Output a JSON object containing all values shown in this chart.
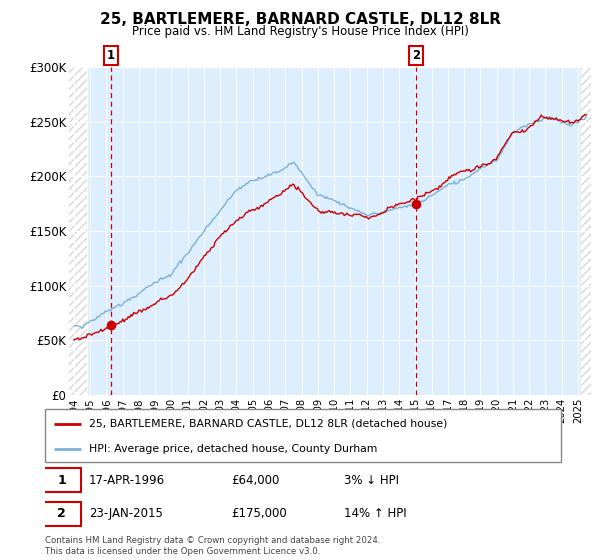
{
  "title": "25, BARTLEMERE, BARNARD CASTLE, DL12 8LR",
  "subtitle": "Price paid vs. HM Land Registry's House Price Index (HPI)",
  "sale1_date": 1996.29,
  "sale1_price": 64000,
  "sale2_date": 2015.06,
  "sale2_price": 175000,
  "ylim": [
    0,
    300000
  ],
  "xlim_start": 1993.7,
  "xlim_end": 2025.8,
  "hpi_color": "#7ab3d9",
  "price_color": "#cc0000",
  "bg_color": "#ddeeff",
  "legend1_label": "25, BARTLEMERE, BARNARD CASTLE, DL12 8LR (detached house)",
  "legend2_label": "HPI: Average price, detached house, County Durham",
  "note1": "17-APR-1996",
  "note1_price": "£64,000",
  "note1_hpi": "3% ↓ HPI",
  "note2": "23-JAN-2015",
  "note2_price": "£175,000",
  "note2_hpi": "14% ↑ HPI",
  "footnote": "Contains HM Land Registry data © Crown copyright and database right 2024.\nThis data is licensed under the Open Government Licence v3.0.",
  "yticks": [
    0,
    50000,
    100000,
    150000,
    200000,
    250000,
    300000
  ],
  "ytick_labels": [
    "£0",
    "£50K",
    "£100K",
    "£150K",
    "£200K",
    "£250K",
    "£300K"
  ],
  "hatch_left_end": 1994.83,
  "hatch_right_start": 2025.17
}
